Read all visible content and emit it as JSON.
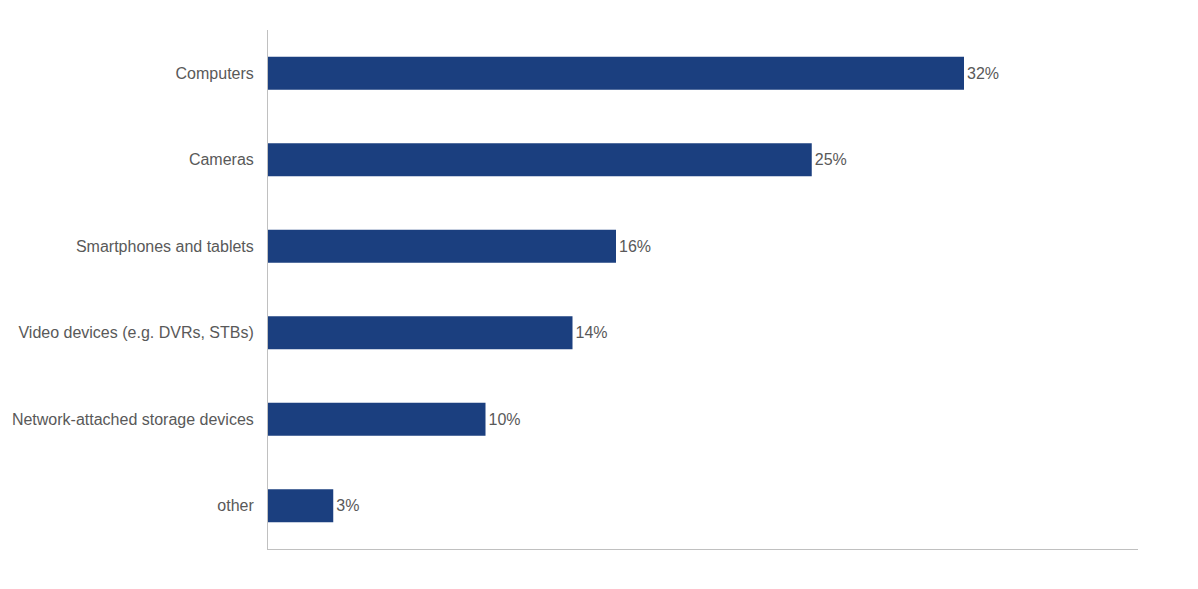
{
  "chart_data": {
    "type": "bar",
    "orientation": "horizontal",
    "categories": [
      "Computers",
      "Cameras",
      "Smartphones and tablets",
      "Video devices (e.g. DVRs, STBs)",
      "Network-attached storage devices",
      "other"
    ],
    "values": [
      32,
      25,
      16,
      14,
      10,
      3
    ],
    "value_labels": [
      "32%",
      "25%",
      "16%",
      "14%",
      "10%",
      "3%"
    ],
    "data_labels": true,
    "color": "#1b3f7f",
    "xlim": [
      0,
      40
    ],
    "xticks": [],
    "grid": false,
    "tick_labels": "y"
  }
}
